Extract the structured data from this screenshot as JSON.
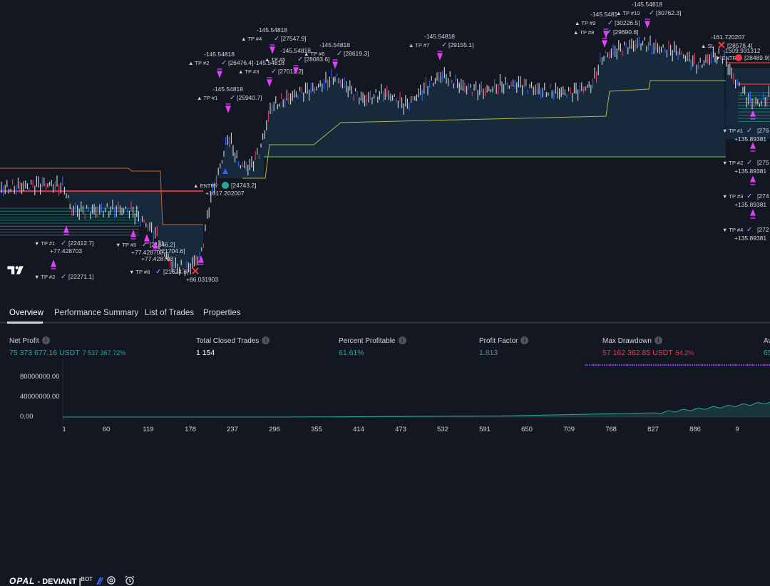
{
  "chart": {
    "annotations_top": [
      {
        "id": "tp1",
        "label": "TP #1",
        "profit": "-145.54818",
        "price": "[25940.7]"
      },
      {
        "id": "tp2",
        "label": "TP #2",
        "profit": "-145.54818",
        "price": "[26476.4]"
      },
      {
        "id": "tp3",
        "label": "TP #3",
        "profit": "-145.54818",
        "price": "[27012.2]"
      },
      {
        "id": "tp4",
        "label": "TP #4",
        "profit": "-145.54818",
        "price": "[27547.9]"
      },
      {
        "id": "tp5",
        "label": "TP #5",
        "profit": "-145.54818",
        "price": "[28083.6]"
      },
      {
        "id": "tp6",
        "label": "TP #6",
        "profit": "-145.54818",
        "price": "[28619.3]"
      },
      {
        "id": "tp7",
        "label": "TP #7",
        "profit": "-145.54818",
        "price": "[29155.1]"
      },
      {
        "id": "tp8",
        "label": "TP #8",
        "profit": "",
        "price": "[29690.8]"
      },
      {
        "id": "tp9",
        "label": "TP #9",
        "profit": "-145.5481",
        "price": "[30226.5]"
      },
      {
        "id": "tp10",
        "label": "TP #10",
        "profit": "-145.54818",
        "price": "[30762.3]"
      }
    ],
    "entry": {
      "label": "ENTRY",
      "price": "[24743.2]",
      "profit": "+1617.202007"
    },
    "left_annotations": [
      {
        "id": "l-tp1",
        "label": "TP #1",
        "price": "[22412.7]",
        "profit": "+77.428703"
      },
      {
        "id": "l-tp2",
        "label": "TP #2",
        "price": "[22271.1]",
        "profit": ""
      },
      {
        "id": "l-tp5",
        "label": "TP #5",
        "price": "[21846.2]",
        "profit": "+77.428703"
      },
      {
        "id": "l-tp6",
        "label": "",
        "price": "[21704.6]",
        "profit": "+77.428703"
      },
      {
        "id": "l-tp8",
        "label": "TP #8",
        "price": "[21624.8]",
        "profit": "+86.031903"
      }
    ],
    "right_top": {
      "sl_label": "SL",
      "sl_price": "[28578.4]",
      "sl_profit": "-161.720207",
      "entry_label": "ENTR",
      "entry_price": "[28489.9]",
      "entry_profit": "-1509.931312"
    },
    "right_annotations": [
      {
        "id": "r-tp1",
        "label": "TP #1",
        "price": "[276",
        "profit": "+135.89381"
      },
      {
        "id": "r-tp2",
        "label": "TP #2",
        "price": "[275",
        "profit": "+135.89381"
      },
      {
        "id": "r-tp3",
        "label": "TP #3",
        "price": "[274",
        "profit": "+135.89381"
      },
      {
        "id": "r-tp4",
        "label": "TP #4",
        "price": "[272",
        "profit": "+135.89381"
      }
    ],
    "logo_text": "TV"
  },
  "toolbar": {
    "strategy_logo": "OPAL",
    "strategy_name": " - DEVIANT",
    "strategy_suffix": "BOT"
  },
  "tabs": [
    {
      "label": "Overview"
    },
    {
      "label": "Performance Summary"
    },
    {
      "label": "List of Trades"
    },
    {
      "label": "Properties"
    }
  ],
  "metrics": {
    "net_profit": {
      "label": "Net Profit",
      "value": "75 373 677.16 USDT",
      "sub": "7 537 367.72%"
    },
    "closed_trades": {
      "label": "Total Closed Trades",
      "value": "1 154"
    },
    "percent_profitable": {
      "label": "Percent Profitable",
      "value": "61.61%"
    },
    "profit_factor": {
      "label": "Profit Factor",
      "value": "1.813"
    },
    "max_drawdown": {
      "label": "Max Drawdown",
      "value": "57 162 362.85 USDT",
      "sub": "54.2%"
    },
    "avg_trade": {
      "label": "Av",
      "value": "65"
    }
  },
  "equity": {
    "y_ticks": [
      "80000000.00",
      "40000000.00",
      "0.00"
    ],
    "x_ticks": [
      "1",
      "60",
      "119",
      "178",
      "237",
      "296",
      "355",
      "414",
      "473",
      "532",
      "591",
      "650",
      "709",
      "768",
      "827",
      "886",
      "9"
    ]
  },
  "colors": {
    "background": "#131722",
    "green": "#26a69a",
    "red": "#f23645",
    "magenta": "#e040fb",
    "trail": "#b7b24a",
    "stop_green": "#4caf50"
  }
}
